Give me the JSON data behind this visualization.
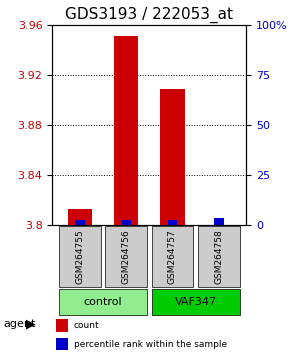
{
  "title": "GDS3193 / 222053_at",
  "samples": [
    "GSM264755",
    "GSM264756",
    "GSM264757",
    "GSM264758"
  ],
  "red_values": [
    3.813,
    3.951,
    3.909,
    3.8
  ],
  "blue_values": [
    3.802,
    3.802,
    3.802,
    3.804
  ],
  "ylim_left": [
    3.8,
    3.96
  ],
  "yticks_left": [
    3.8,
    3.84,
    3.88,
    3.92,
    3.96
  ],
  "yticks_right": [
    0,
    25,
    50,
    75,
    100
  ],
  "ylim_right": [
    0,
    100
  ],
  "groups": [
    {
      "label": "control",
      "indices": [
        0,
        1
      ],
      "color": "#90EE90"
    },
    {
      "label": "VAF347",
      "indices": [
        2,
        3
      ],
      "color": "#00CC00"
    }
  ],
  "group_row_label": "agent",
  "bar_width": 0.35,
  "red_color": "#CC0000",
  "blue_color": "#0000CC",
  "grid_color": "#000000",
  "title_fontsize": 11,
  "tick_fontsize": 8,
  "legend_items": [
    {
      "color": "#CC0000",
      "label": "count"
    },
    {
      "color": "#0000CC",
      "label": "percentile rank within the sample"
    }
  ]
}
